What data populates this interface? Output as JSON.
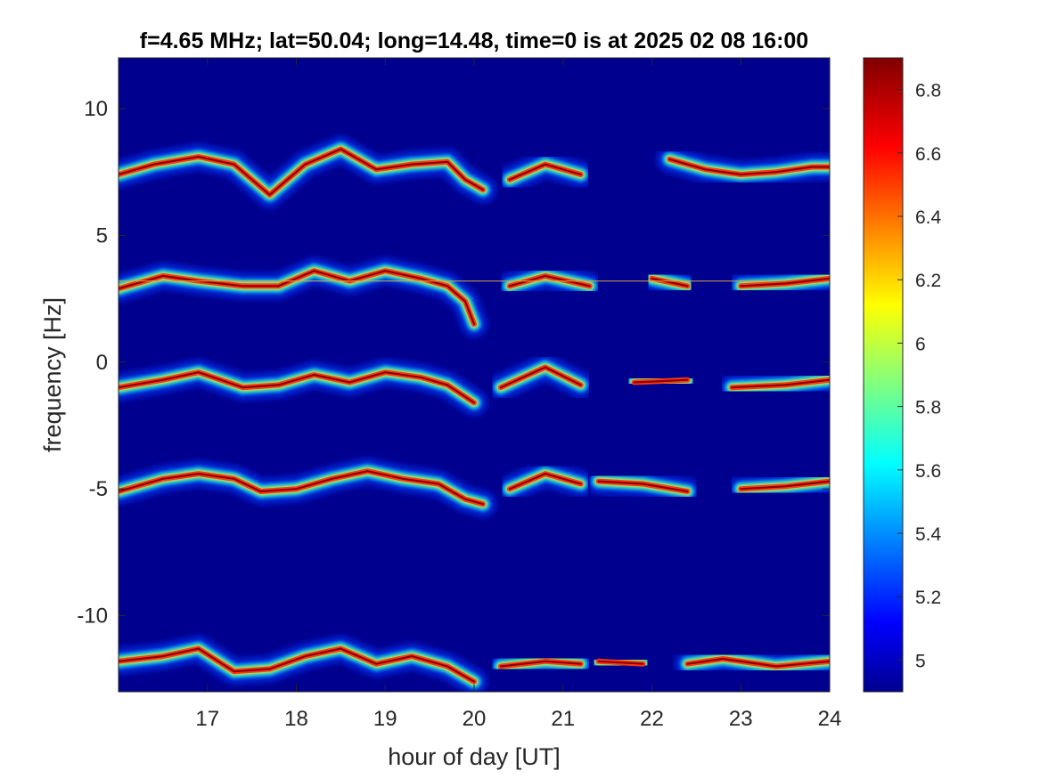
{
  "chart_data": {
    "type": "heatmap",
    "title": "f=4.65 MHz;  lat=50.04; long=14.48, time=0 is at 2025 02 08 16:00",
    "xlabel": "hour of day [UT]",
    "ylabel": "frequency [Hz]",
    "xlim": [
      16,
      24
    ],
    "ylim": [
      -13,
      12
    ],
    "x_ticks": [
      17,
      18,
      19,
      20,
      21,
      22,
      23,
      24
    ],
    "x_tick_labels": [
      "17",
      "18",
      "19",
      "20",
      "21",
      "22",
      "23",
      "24"
    ],
    "y_ticks": [
      10,
      5,
      0,
      -5,
      -10
    ],
    "y_tick_labels": [
      "10",
      "5",
      "0",
      "-5",
      "-10"
    ],
    "colormap": "jet",
    "background_color": "#00008f",
    "colorbar": {
      "range": [
        4.9,
        6.9
      ],
      "ticks": [
        6.8,
        6.6,
        6.4,
        6.2,
        6.0,
        5.8,
        5.6,
        5.4,
        5.2,
        5.0
      ],
      "tick_labels": [
        "6.8",
        "6.6",
        "6.4",
        "6.2",
        "6",
        "5.8",
        "5.6",
        "5.4",
        "5.2",
        "5"
      ]
    },
    "grid": false,
    "bands": [
      {
        "name": "band-1",
        "points": [
          [
            16.0,
            7.4
          ],
          [
            16.4,
            7.8
          ],
          [
            16.9,
            8.1
          ],
          [
            17.3,
            7.8
          ],
          [
            17.7,
            6.6
          ],
          [
            18.1,
            7.8
          ],
          [
            18.5,
            8.4
          ],
          [
            18.9,
            7.6
          ],
          [
            19.3,
            7.8
          ],
          [
            19.7,
            7.9
          ],
          [
            19.9,
            7.2
          ],
          [
            20.1,
            6.8
          ]
        ]
      },
      {
        "name": "band-1b",
        "points": [
          [
            20.4,
            7.2
          ],
          [
            20.8,
            7.8
          ],
          [
            21.2,
            7.4
          ]
        ]
      },
      {
        "name": "band-1c",
        "points": [
          [
            22.2,
            8.0
          ],
          [
            22.6,
            7.6
          ],
          [
            23.0,
            7.4
          ],
          [
            23.4,
            7.5
          ],
          [
            23.8,
            7.7
          ],
          [
            24.0,
            7.7
          ]
        ]
      },
      {
        "name": "band-2",
        "points": [
          [
            16.0,
            2.9
          ],
          [
            16.5,
            3.4
          ],
          [
            16.9,
            3.2
          ],
          [
            17.4,
            3.0
          ],
          [
            17.8,
            3.0
          ],
          [
            18.2,
            3.6
          ],
          [
            18.6,
            3.2
          ],
          [
            19.0,
            3.6
          ],
          [
            19.4,
            3.3
          ],
          [
            19.7,
            3.0
          ],
          [
            19.9,
            2.4
          ],
          [
            20.0,
            1.5
          ]
        ]
      },
      {
        "name": "band-2b",
        "points": [
          [
            20.4,
            3.0
          ],
          [
            20.8,
            3.4
          ],
          [
            21.3,
            3.0
          ]
        ]
      },
      {
        "name": "band-2c",
        "points": [
          [
            22.0,
            3.3
          ],
          [
            22.4,
            3.0
          ]
        ]
      },
      {
        "name": "band-2d",
        "points": [
          [
            23.0,
            3.0
          ],
          [
            23.5,
            3.1
          ],
          [
            24.0,
            3.3
          ]
        ]
      },
      {
        "name": "band-3",
        "points": [
          [
            16.0,
            -1.0
          ],
          [
            16.5,
            -0.7
          ],
          [
            16.9,
            -0.4
          ],
          [
            17.4,
            -1.0
          ],
          [
            17.8,
            -0.9
          ],
          [
            18.2,
            -0.5
          ],
          [
            18.6,
            -0.8
          ],
          [
            19.0,
            -0.4
          ],
          [
            19.4,
            -0.6
          ],
          [
            19.7,
            -0.9
          ],
          [
            20.0,
            -1.6
          ]
        ]
      },
      {
        "name": "band-3b",
        "points": [
          [
            20.3,
            -1.0
          ],
          [
            20.8,
            -0.2
          ],
          [
            21.2,
            -0.9
          ]
        ]
      },
      {
        "name": "band-3c",
        "points": [
          [
            21.8,
            -0.8
          ],
          [
            22.4,
            -0.7
          ]
        ]
      },
      {
        "name": "band-3d",
        "points": [
          [
            22.9,
            -1.0
          ],
          [
            23.5,
            -0.9
          ],
          [
            24.0,
            -0.7
          ]
        ]
      },
      {
        "name": "band-4",
        "points": [
          [
            16.0,
            -5.1
          ],
          [
            16.5,
            -4.6
          ],
          [
            16.9,
            -4.4
          ],
          [
            17.3,
            -4.6
          ],
          [
            17.6,
            -5.1
          ],
          [
            18.0,
            -5.0
          ],
          [
            18.4,
            -4.6
          ],
          [
            18.8,
            -4.3
          ],
          [
            19.2,
            -4.6
          ],
          [
            19.6,
            -4.8
          ],
          [
            19.9,
            -5.4
          ],
          [
            20.1,
            -5.6
          ]
        ]
      },
      {
        "name": "band-4b",
        "points": [
          [
            20.4,
            -5.0
          ],
          [
            20.8,
            -4.4
          ],
          [
            21.2,
            -4.8
          ]
        ]
      },
      {
        "name": "band-4c",
        "points": [
          [
            21.4,
            -4.7
          ],
          [
            21.9,
            -4.8
          ],
          [
            22.4,
            -5.1
          ]
        ]
      },
      {
        "name": "band-4d",
        "points": [
          [
            23.0,
            -5.0
          ],
          [
            23.5,
            -4.9
          ],
          [
            24.0,
            -4.7
          ]
        ]
      },
      {
        "name": "band-5",
        "points": [
          [
            16.0,
            -11.8
          ],
          [
            16.5,
            -11.6
          ],
          [
            16.9,
            -11.3
          ],
          [
            17.3,
            -12.2
          ],
          [
            17.7,
            -12.1
          ],
          [
            18.1,
            -11.6
          ],
          [
            18.5,
            -11.3
          ],
          [
            18.9,
            -11.9
          ],
          [
            19.3,
            -11.6
          ],
          [
            19.7,
            -12.0
          ],
          [
            20.0,
            -12.6
          ]
        ]
      },
      {
        "name": "band-5b",
        "points": [
          [
            20.3,
            -12.0
          ],
          [
            20.8,
            -11.8
          ],
          [
            21.2,
            -11.9
          ]
        ]
      },
      {
        "name": "band-5c",
        "points": [
          [
            21.4,
            -11.8
          ],
          [
            21.9,
            -11.9
          ]
        ]
      },
      {
        "name": "band-5d",
        "points": [
          [
            22.4,
            -11.9
          ],
          [
            22.8,
            -11.7
          ],
          [
            23.4,
            -12.0
          ],
          [
            24.0,
            -11.8
          ]
        ]
      }
    ],
    "reference_lines": [
      {
        "name": "carrier-line",
        "y": 3.2,
        "x_range": [
          16.0,
          23.3
        ]
      }
    ]
  }
}
